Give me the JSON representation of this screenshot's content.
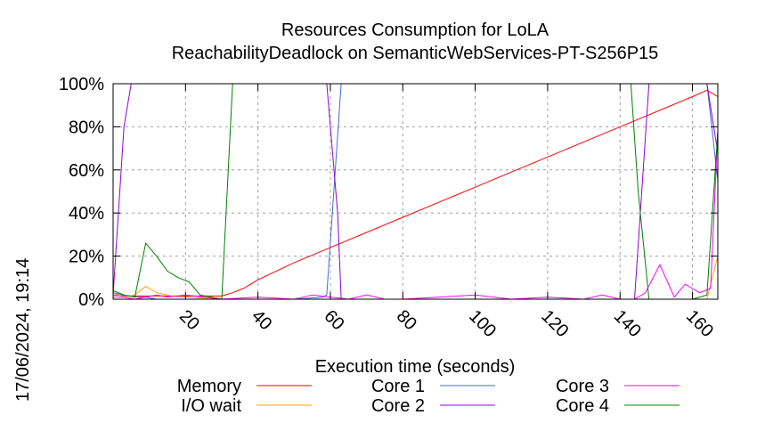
{
  "chart_data": {
    "type": "line",
    "title": "Resources Consumption for LoLA",
    "subtitle": "ReachabilityDeadlock on SemanticWebServices-PT-S256P15",
    "xlabel": "Execution time (seconds)",
    "ylabel": "",
    "xlim": [
      0,
      167
    ],
    "ylim": [
      0,
      100
    ],
    "x_ticks": [
      20,
      40,
      60,
      80,
      100,
      120,
      140,
      160
    ],
    "x_tick_labels": [
      "20",
      "40",
      "60",
      "80",
      "100",
      "120",
      "140",
      "160"
    ],
    "y_ticks": [
      0,
      20,
      40,
      60,
      80,
      100
    ],
    "y_tick_labels": [
      "0%",
      "20%",
      "40%",
      "60%",
      "80%",
      "100%"
    ],
    "grid": true,
    "legend_position": "bottom",
    "timestamp": "17/06/2024, 19:14",
    "series": [
      {
        "name": "Memory",
        "color": "#ff0000",
        "x": [
          0,
          5,
          10,
          15,
          20,
          25,
          30,
          33,
          36,
          40,
          50,
          60,
          70,
          80,
          90,
          100,
          110,
          120,
          130,
          140,
          150,
          160,
          164,
          167
        ],
        "y": [
          2,
          1.5,
          1.5,
          1.5,
          1.5,
          1.5,
          1.5,
          3,
          5,
          9,
          17,
          24,
          31,
          38,
          45,
          52,
          59,
          66,
          73,
          80,
          87,
          94,
          97,
          94
        ]
      },
      {
        "name": "I/O wait",
        "color": "#ffa500",
        "x": [
          0,
          3,
          6,
          9,
          12,
          15,
          18,
          21,
          24,
          27,
          30,
          40,
          60,
          100,
          140,
          160,
          164,
          167
        ],
        "y": [
          3,
          1,
          2,
          6,
          3,
          2,
          1,
          1,
          0.5,
          0.5,
          0,
          0,
          0,
          0,
          0,
          0,
          0,
          20
        ]
      },
      {
        "name": "Core 1",
        "color": "#4169e1",
        "x": [
          0,
          3,
          6,
          9,
          12,
          15,
          20,
          30,
          40,
          50,
          58,
          59,
          63,
          64,
          80,
          100,
          120,
          140,
          160,
          164,
          167
        ],
        "y": [
          3,
          2,
          1,
          1,
          0,
          0,
          0,
          0,
          0,
          0,
          1,
          2,
          100,
          100,
          100,
          100,
          100,
          100,
          100,
          100,
          55
        ]
      },
      {
        "name": "Core 2",
        "color": "#9400d3",
        "x": [
          0,
          3,
          5,
          10,
          20,
          40,
          58,
          59,
          62,
          63,
          64,
          80,
          100,
          120,
          140,
          144,
          148,
          150,
          160,
          164,
          167
        ],
        "y": [
          2,
          80,
          100,
          100,
          100,
          100,
          100,
          100,
          40,
          0,
          0,
          0,
          0,
          0,
          0,
          0,
          100,
          100,
          100,
          100,
          68
        ]
      },
      {
        "name": "Core 3",
        "color": "#ff00ff",
        "x": [
          0,
          3,
          6,
          9,
          12,
          15,
          20,
          25,
          30,
          40,
          50,
          55,
          60,
          65,
          70,
          75,
          80,
          90,
          100,
          110,
          120,
          130,
          135,
          140,
          144,
          147,
          151,
          155,
          158,
          162,
          165,
          167
        ],
        "y": [
          1,
          1,
          0,
          1,
          2,
          1,
          2,
          1,
          0,
          1,
          0,
          2,
          1,
          0,
          2,
          0,
          0,
          1,
          2,
          0,
          1,
          0,
          2,
          0,
          0,
          3,
          16,
          1,
          7,
          3,
          5,
          78
        ]
      },
      {
        "name": "Core 4",
        "color": "#008000",
        "x": [
          0,
          3,
          6,
          9,
          12,
          15,
          18,
          21,
          24,
          27,
          30,
          33,
          34,
          40,
          60,
          80,
          100,
          120,
          140,
          143,
          145,
          148,
          150,
          160,
          164,
          167
        ],
        "y": [
          4,
          2,
          1,
          26,
          20,
          13,
          10,
          8,
          2,
          1,
          0,
          100,
          100,
          100,
          100,
          100,
          100,
          100,
          100,
          100,
          50,
          0,
          0,
          0,
          2,
          78
        ]
      }
    ]
  }
}
